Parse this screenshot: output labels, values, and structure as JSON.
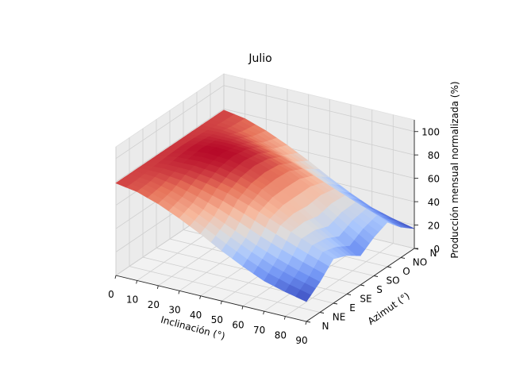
{
  "chart_data": {
    "type": "surface",
    "title": "Julio",
    "xlabel": "Inclinación (°)",
    "ylabel": "Azimut (°)",
    "zlabel": "Producción mensual normalizada (%)",
    "x_ticks": [
      "0",
      "10",
      "20",
      "30",
      "40",
      "50",
      "60",
      "70",
      "80",
      "90"
    ],
    "y_ticks": [
      "N",
      "NE",
      "E",
      "SE",
      "S",
      "SO",
      "O",
      "NO",
      "N"
    ],
    "z_ticks": [
      "0",
      "20",
      "40",
      "60",
      "80",
      "100"
    ],
    "xlim": [
      0,
      90
    ],
    "ylim": [
      0,
      360
    ],
    "zlim": [
      0,
      110
    ],
    "grid": true,
    "colormap": "coolwarm",
    "colormap_stops": [
      "#3b4cc0",
      "#6f92f3",
      "#aac7fd",
      "#dddcdc",
      "#f7b89c",
      "#e7745b",
      "#b40426"
    ],
    "inclinations": [
      0,
      10,
      20,
      30,
      40,
      50,
      60,
      70,
      80,
      90
    ],
    "azimuths": [
      0,
      45,
      90,
      135,
      180,
      225,
      270,
      315,
      360
    ],
    "values": [
      [
        79,
        79,
        79,
        79,
        79,
        79,
        79,
        79,
        79
      ],
      [
        76,
        77,
        80,
        82,
        83,
        82,
        80,
        77,
        76
      ],
      [
        70,
        73,
        79,
        83,
        85,
        83,
        79,
        73,
        70
      ],
      [
        62,
        67,
        76,
        82,
        84,
        82,
        76,
        67,
        62
      ],
      [
        53,
        60,
        72,
        78,
        80,
        78,
        72,
        60,
        53
      ],
      [
        43,
        52,
        66,
        72,
        73,
        72,
        66,
        52,
        43
      ],
      [
        34,
        44,
        59,
        63,
        63,
        63,
        59,
        44,
        34
      ],
      [
        26,
        37,
        52,
        53,
        50,
        53,
        52,
        37,
        26
      ],
      [
        21,
        31,
        45,
        43,
        37,
        43,
        45,
        31,
        21
      ],
      [
        17,
        26,
        38,
        33,
        25,
        33,
        38,
        26,
        17
      ]
    ]
  }
}
